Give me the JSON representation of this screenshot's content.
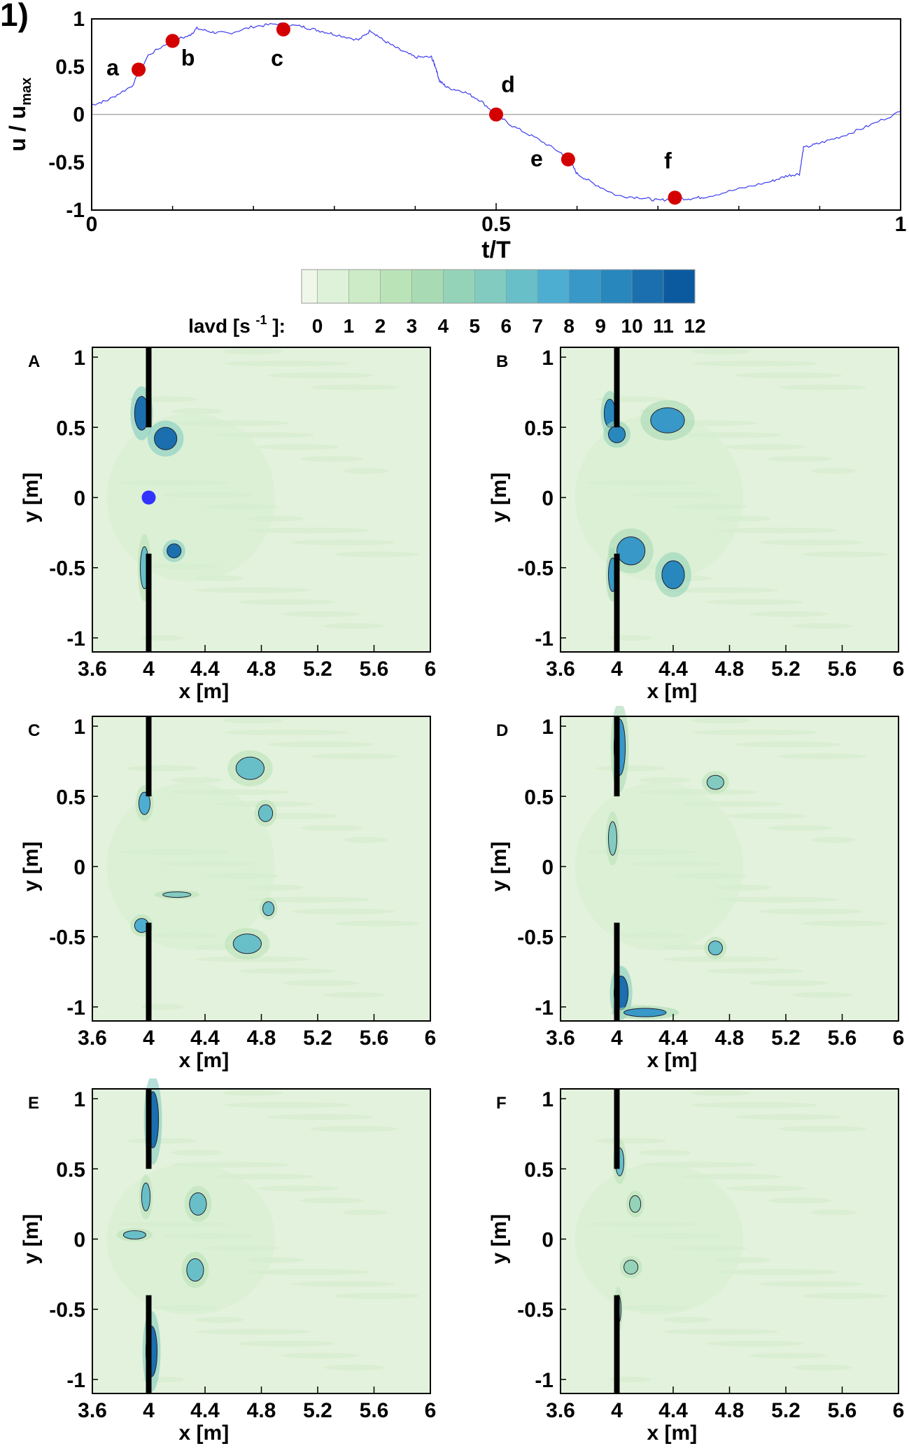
{
  "figure_label": "1)",
  "chart_data": [
    {
      "type": "line",
      "xlabel": "t/T",
      "ylabel": "u / u_max",
      "ylabel_main": "u / u",
      "ylabel_sub": "max",
      "xlim": [
        0,
        1
      ],
      "ylim": [
        -1,
        1
      ],
      "xticks": [
        "0",
        "0.5",
        "1"
      ],
      "yticks": [
        "1",
        "0.5",
        "0",
        "-0.5",
        "-1"
      ],
      "grid": false,
      "zero_line": true,
      "line_color": "#3a3af0",
      "marker_color": "#d40000",
      "series": [
        {
          "x": [
            0,
            0.02,
            0.05,
            0.07,
            0.1,
            0.12,
            0.13,
            0.15,
            0.17,
            0.2,
            0.23,
            0.26,
            0.28,
            0.3,
            0.33,
            0.345,
            0.36,
            0.38,
            0.4,
            0.42,
            0.425,
            0.43,
            0.44,
            0.46,
            0.48,
            0.5,
            0.52,
            0.55,
            0.58,
            0.59,
            0.6,
            0.62,
            0.65,
            0.68,
            0.7,
            0.72,
            0.74,
            0.76,
            0.8,
            0.84,
            0.86,
            0.875,
            0.88,
            0.9,
            0.93,
            0.96,
            1
          ],
          "y": [
            0.1,
            0.15,
            0.3,
            0.62,
            0.78,
            0.82,
            0.9,
            0.86,
            0.85,
            0.92,
            0.95,
            0.92,
            0.88,
            0.84,
            0.78,
            0.88,
            0.78,
            0.68,
            0.6,
            0.6,
            0.5,
            0.35,
            0.28,
            0.24,
            0.15,
            0,
            -0.12,
            -0.25,
            -0.4,
            -0.47,
            -0.62,
            -0.72,
            -0.85,
            -0.87,
            -0.9,
            -0.88,
            -0.88,
            -0.86,
            -0.78,
            -0.7,
            -0.64,
            -0.62,
            -0.35,
            -0.3,
            -0.22,
            -0.12,
            0.03
          ]
        }
      ],
      "points": [
        {
          "label": "a",
          "x": 0.058,
          "y": 0.47
        },
        {
          "label": "b",
          "x": 0.1,
          "y": 0.77
        },
        {
          "label": "c",
          "x": 0.237,
          "y": 0.89
        },
        {
          "label": "d",
          "x": 0.5,
          "y": 0.0
        },
        {
          "label": "e",
          "x": 0.589,
          "y": -0.47
        },
        {
          "label": "f",
          "x": 0.721,
          "y": -0.87
        }
      ]
    },
    {
      "type": "heatmap",
      "colorbar": {
        "label_main": "lavd [s",
        "label_sup": "-1",
        "label_end": "]:",
        "ticks": [
          "0",
          "1",
          "2",
          "3",
          "4",
          "5",
          "6",
          "7",
          "8",
          "9",
          "10",
          "11",
          "12"
        ],
        "colors": [
          "#eef7e8",
          "#def1d9",
          "#cdebc6",
          "#bbe3b8",
          "#a8dbb4",
          "#94d3b8",
          "#82cbc0",
          "#69bfc8",
          "#4eaed2",
          "#3898c7",
          "#2887bd",
          "#1b6fae",
          "#0b5aa0"
        ]
      },
      "xlabel": "x [m]",
      "ylabel": "y [m]",
      "xlim": [
        3.6,
        6
      ],
      "ylim": [
        -1.1,
        1.07
      ],
      "xticks": [
        "3.6",
        "4",
        "4.4",
        "4.8",
        "5.2",
        "5.6",
        "6"
      ],
      "yticks": [
        "1",
        "0.5",
        "0",
        "-0.5",
        "-1"
      ],
      "panels": [
        {
          "label": "A"
        },
        {
          "label": "B"
        },
        {
          "label": "C"
        },
        {
          "label": "D"
        },
        {
          "label": "E"
        },
        {
          "label": "F"
        }
      ],
      "probe_point": {
        "panel": "A",
        "x": 4.0,
        "y": 0.0,
        "color": "#3333ff"
      }
    }
  ]
}
